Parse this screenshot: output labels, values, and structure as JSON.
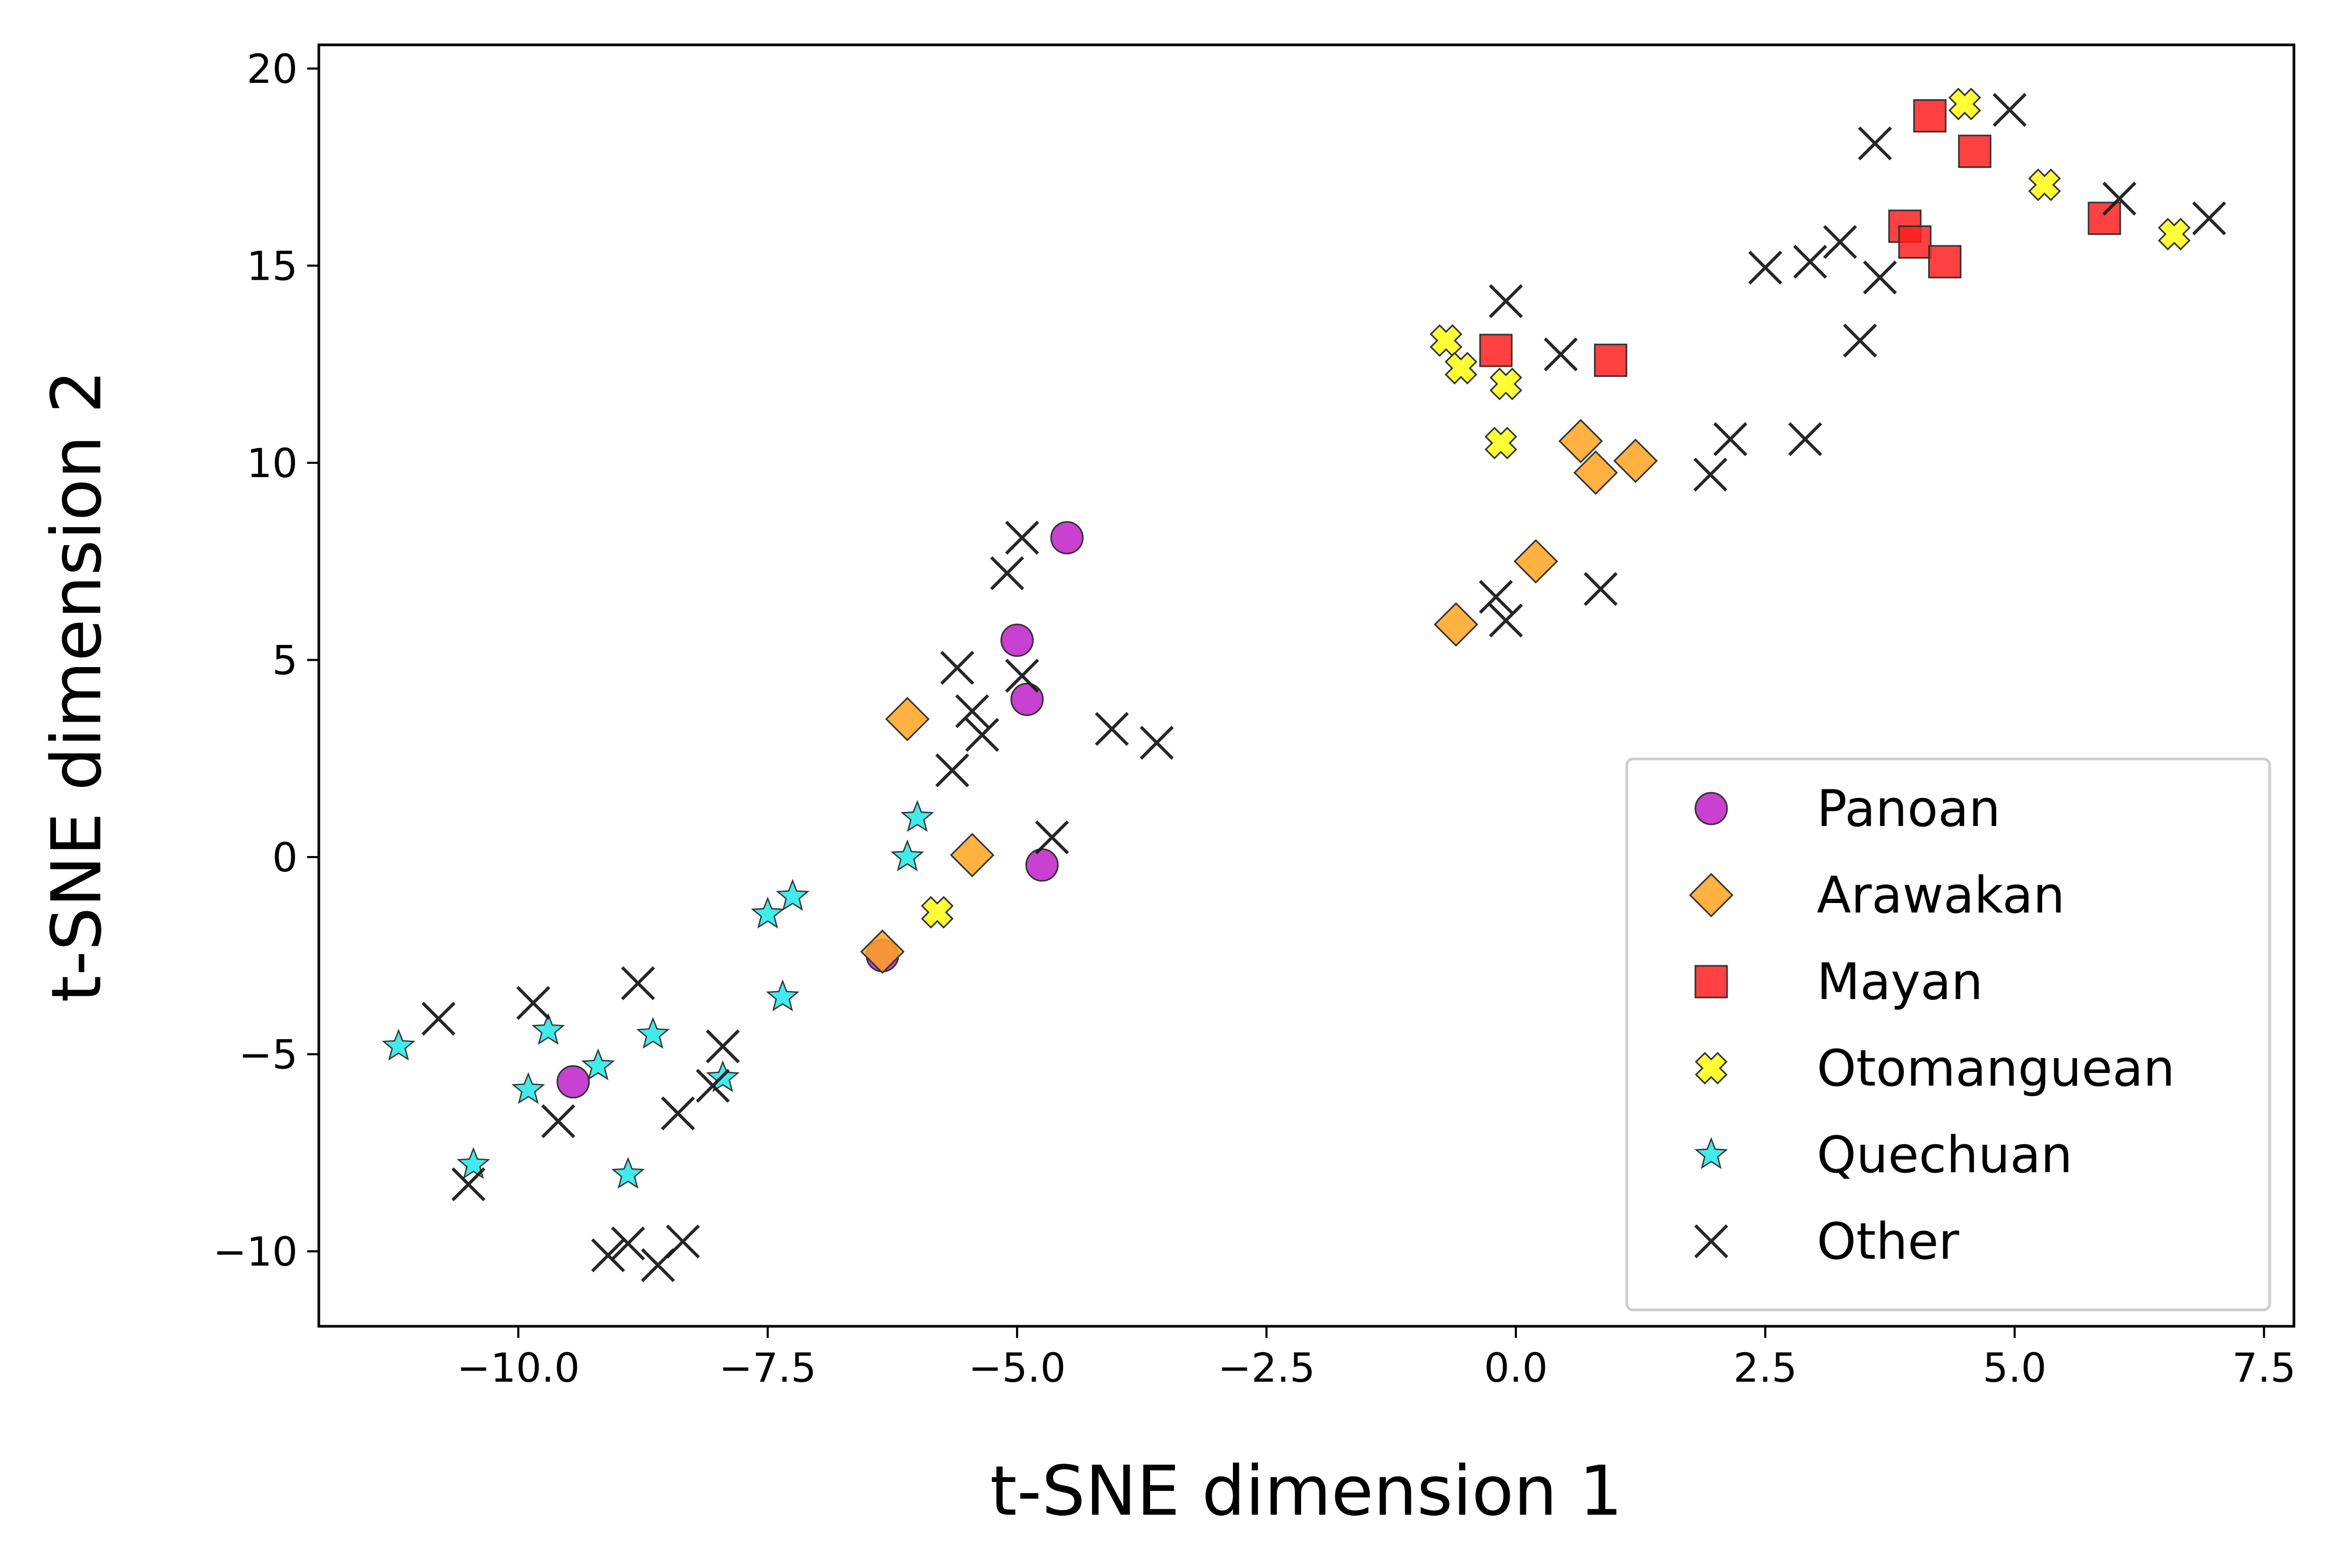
{
  "chart_data": {
    "type": "scatter",
    "title": "",
    "xlabel": "t-SNE dimension 1",
    "ylabel": "t-SNE dimension 2",
    "xlim": [
      -12.0,
      7.8
    ],
    "ylim": [
      -11.9,
      20.6
    ],
    "xticks": [
      -10.0,
      -7.5,
      -5.0,
      -2.5,
      0.0,
      2.5,
      5.0,
      7.5
    ],
    "xtick_labels": [
      "−10.0",
      "−7.5",
      "−5.0",
      "−2.5",
      "0.0",
      "2.5",
      "5.0",
      "7.5"
    ],
    "yticks": [
      -10,
      -5,
      0,
      5,
      10,
      15,
      20
    ],
    "ytick_labels": [
      "−10",
      "−5",
      "0",
      "5",
      "10",
      "15",
      "20"
    ],
    "grid": false,
    "legend_position": "lower-right",
    "series": [
      {
        "name": "Panoan",
        "marker": "circle",
        "color": "#c020c8",
        "points": [
          [
            -4.5,
            8.1
          ],
          [
            -5.0,
            5.5
          ],
          [
            -4.9,
            4.0
          ],
          [
            -4.75,
            -0.2
          ],
          [
            -6.35,
            -2.5
          ],
          [
            -9.45,
            -5.7
          ]
        ]
      },
      {
        "name": "Arawakan",
        "marker": "diamond",
        "color": "#ffa420",
        "points": [
          [
            -6.1,
            3.5
          ],
          [
            -5.45,
            0.05
          ],
          [
            -6.35,
            -2.4
          ],
          [
            0.2,
            7.5
          ],
          [
            -0.6,
            5.9
          ],
          [
            0.65,
            10.55
          ],
          [
            0.8,
            9.75
          ],
          [
            1.2,
            10.05
          ]
        ]
      },
      {
        "name": "Mayan",
        "marker": "square",
        "color": "#ff2020",
        "points": [
          [
            -0.2,
            12.85
          ],
          [
            0.95,
            12.6
          ],
          [
            4.15,
            18.8
          ],
          [
            4.6,
            17.9
          ],
          [
            3.9,
            16.0
          ],
          [
            4.0,
            15.6
          ],
          [
            4.3,
            15.1
          ],
          [
            5.9,
            16.2
          ]
        ]
      },
      {
        "name": "Otomanguean",
        "marker": "plus-x",
        "color": "#ffff20",
        "points": [
          [
            -0.7,
            13.1
          ],
          [
            -0.55,
            12.4
          ],
          [
            -0.1,
            12.0
          ],
          [
            -0.15,
            10.5
          ],
          [
            4.5,
            19.1
          ],
          [
            5.3,
            17.05
          ],
          [
            6.6,
            15.8
          ],
          [
            -5.8,
            -1.4
          ]
        ]
      },
      {
        "name": "Quechuan",
        "marker": "star",
        "color": "#20e8e8",
        "points": [
          [
            -6.0,
            1.0
          ],
          [
            -6.1,
            0.0
          ],
          [
            -7.25,
            -1.0
          ],
          [
            -7.5,
            -1.45
          ],
          [
            -7.35,
            -3.55
          ],
          [
            -8.65,
            -4.5
          ],
          [
            -9.7,
            -4.4
          ],
          [
            -9.2,
            -5.3
          ],
          [
            -7.95,
            -5.6
          ],
          [
            -9.9,
            -5.9
          ],
          [
            -11.2,
            -4.8
          ],
          [
            -10.45,
            -7.8
          ],
          [
            -8.9,
            -8.05
          ]
        ]
      },
      {
        "name": "Other",
        "marker": "x",
        "color": "#1a1a1a",
        "points": [
          [
            -4.95,
            8.1
          ],
          [
            -5.1,
            7.2
          ],
          [
            -4.95,
            4.6
          ],
          [
            -5.6,
            4.8
          ],
          [
            -5.45,
            3.7
          ],
          [
            -5.35,
            3.1
          ],
          [
            -5.65,
            2.2
          ],
          [
            -4.65,
            0.5
          ],
          [
            -4.05,
            3.25
          ],
          [
            -3.6,
            2.9
          ],
          [
            -7.95,
            -4.8
          ],
          [
            -8.05,
            -5.8
          ],
          [
            -8.4,
            -6.5
          ],
          [
            -8.8,
            -3.2
          ],
          [
            -9.85,
            -3.7
          ],
          [
            -10.8,
            -4.1
          ],
          [
            -9.6,
            -6.7
          ],
          [
            -10.5,
            -8.3
          ],
          [
            -9.1,
            -10.1
          ],
          [
            -8.9,
            -9.8
          ],
          [
            -8.6,
            -10.35
          ],
          [
            -8.35,
            -9.75
          ],
          [
            -0.1,
            14.1
          ],
          [
            0.45,
            12.75
          ],
          [
            -0.2,
            6.6
          ],
          [
            -0.1,
            6.0
          ],
          [
            0.85,
            6.8
          ],
          [
            1.95,
            9.7
          ],
          [
            2.15,
            10.6
          ],
          [
            2.9,
            10.6
          ],
          [
            2.5,
            14.95
          ],
          [
            2.95,
            15.1
          ],
          [
            3.25,
            15.6
          ],
          [
            3.45,
            13.1
          ],
          [
            3.65,
            14.7
          ],
          [
            3.6,
            18.1
          ],
          [
            4.95,
            18.95
          ],
          [
            6.05,
            16.7
          ],
          [
            6.95,
            16.2
          ]
        ]
      }
    ]
  }
}
